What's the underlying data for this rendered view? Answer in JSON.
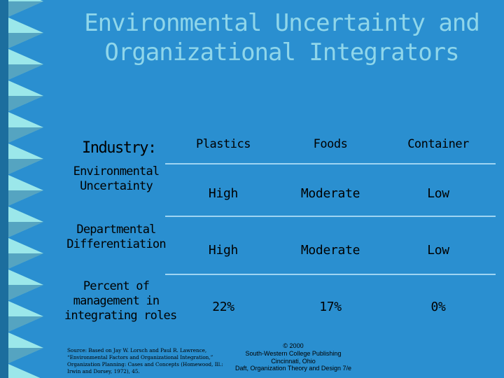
{
  "title": {
    "line1": "Environmental Uncertainty and",
    "line2": "Organizational Integrators"
  },
  "table": {
    "corner_label": "Industry:",
    "columns": [
      "Plastics",
      "Foods",
      "Container"
    ],
    "rows": [
      {
        "label_lines": [
          "Environmental",
          "Uncertainty"
        ],
        "values": [
          "High",
          "Moderate",
          "Low"
        ]
      },
      {
        "label_lines": [
          "Departmental",
          "Differentiation"
        ],
        "values": [
          "High",
          "Moderate",
          "Low"
        ]
      },
      {
        "label_lines": [
          "Percent of",
          "management in",
          "integrating roles"
        ],
        "values": [
          "22%",
          "17%",
          "0%"
        ]
      }
    ]
  },
  "source": {
    "lines": [
      "Source: Based on Jay W. Lorsch and Paul R. Lawrence,",
      "“Environmental Factors and Organizational Integration,”",
      "Organization Planning: Cases and Concepts (Homewood, Ill.:",
      "Irwin and Dorsey, 1972), 45."
    ]
  },
  "credit": {
    "lines": [
      "© 2000",
      "South-Western College Publishing",
      "Cincinnati, Ohio",
      "Daft, Organization Theory and Design 7/e"
    ]
  },
  "colors": {
    "background": "#2a8fd0",
    "title": "#8fd6ea",
    "rules": "#9fd4f2",
    "strip_light": "#9be7ea",
    "strip_dark": "#1c6e9e"
  }
}
